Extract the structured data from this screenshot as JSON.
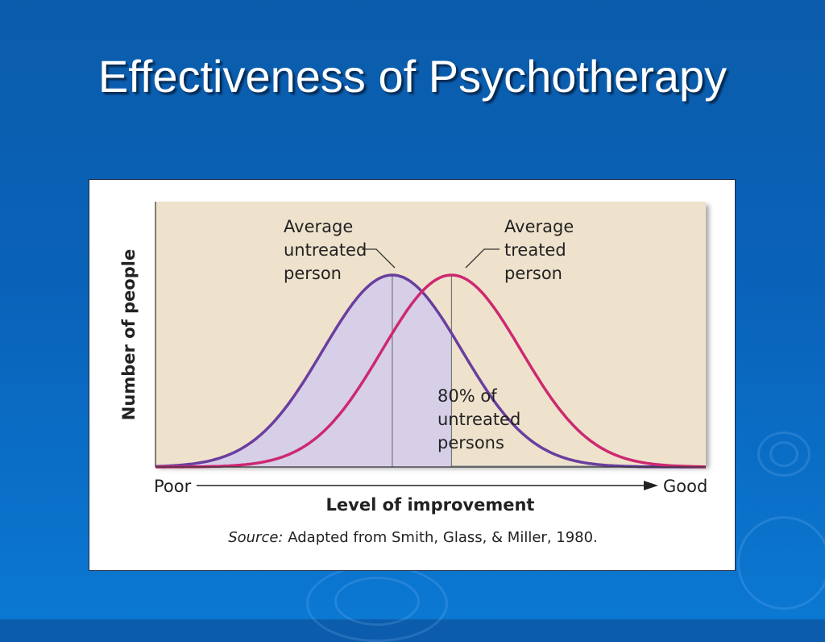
{
  "slide": {
    "title": "Effectiveness of Psychotherapy",
    "background_color": "#0b63b6",
    "decoration": "ripple-pattern"
  },
  "chart_data": {
    "type": "line",
    "title": "",
    "xlabel": "Level of improvement",
    "ylabel": "Number of people",
    "x_axis_ends": {
      "left": "Poor",
      "right": "Good"
    },
    "grid": false,
    "background_color": "#efe2cc",
    "series": [
      {
        "label_lines": [
          "Average",
          "untreated",
          "person"
        ],
        "color": "#6a3e9e",
        "shape": "normal",
        "mean": 0.0,
        "sd": 1.0
      },
      {
        "label_lines": [
          "Average",
          "treated",
          "person"
        ],
        "color": "#cc2970",
        "shape": "normal",
        "mean": 0.85,
        "sd": 1.0
      }
    ],
    "shaded_region": {
      "under_series": 0,
      "from_x": "min",
      "to_x": 0.85,
      "color": "#d7cfe8",
      "share": 0.8,
      "label_lines": [
        "80% of",
        "untreated",
        "persons"
      ]
    },
    "x_range": [
      -3.4,
      4.5
    ],
    "source_label": "Source:",
    "source_text": "Adapted from Smith, Glass, & Miller, 1980."
  }
}
